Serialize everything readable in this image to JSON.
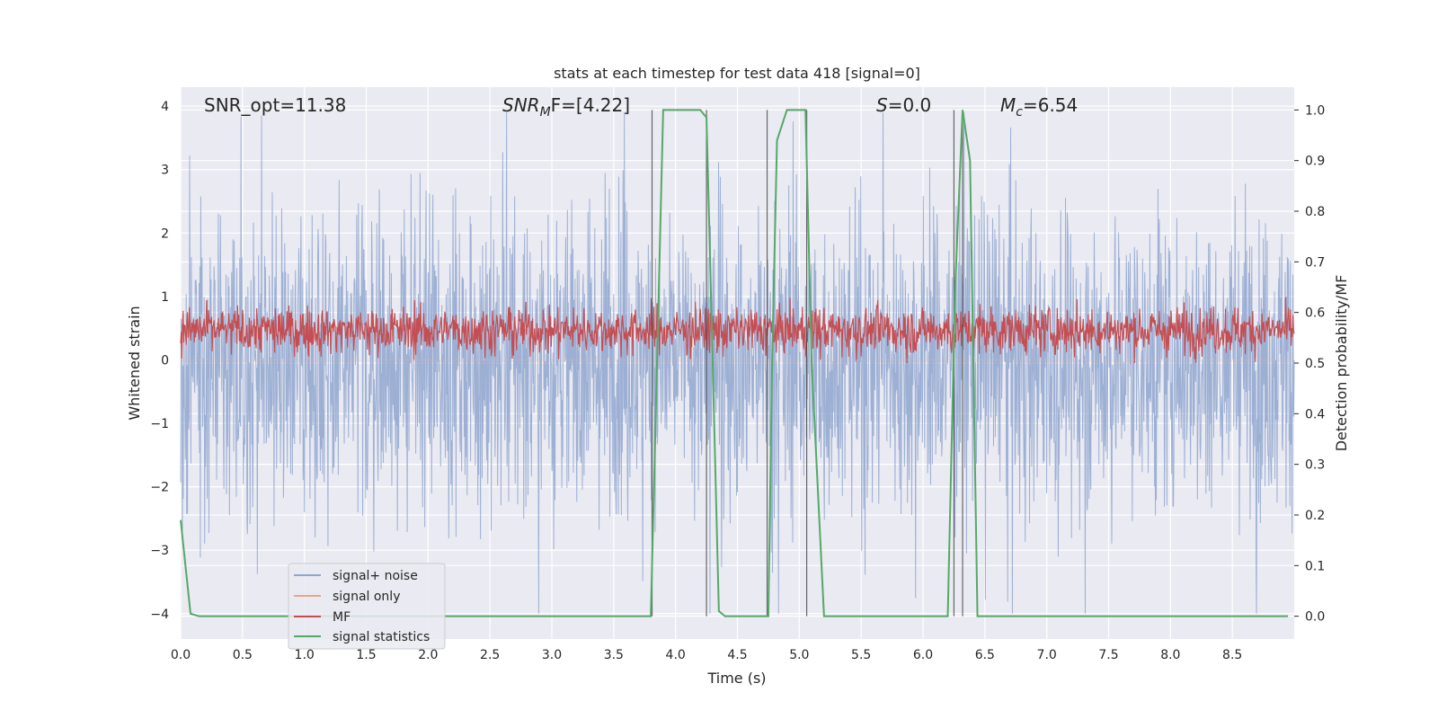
{
  "chart_data": {
    "type": "line",
    "title": "stats at each timestep for test data 418 [signal=0]",
    "xlabel": "Time (s)",
    "ylabel": "Whitened strain",
    "y2label": "Detection probability/MF",
    "xlim": [
      0,
      9.0
    ],
    "ylim": [
      -4.4,
      4.3
    ],
    "y2lim": [
      -0.045,
      1.045
    ],
    "x_ticks": [
      "0.0",
      "0.5",
      "1.0",
      "1.5",
      "2.0",
      "2.5",
      "3.0",
      "3.5",
      "4.0",
      "4.5",
      "5.0",
      "5.5",
      "6.0",
      "6.5",
      "7.0",
      "7.5",
      "8.0",
      "8.5"
    ],
    "y_ticks": [
      "4",
      "3",
      "2",
      "1",
      "0",
      "−1",
      "−2",
      "−3",
      "−4"
    ],
    "y2_ticks": [
      "1.0",
      "0.9",
      "0.8",
      "0.7",
      "0.6",
      "0.5",
      "0.4",
      "0.3",
      "0.2",
      "0.1",
      "0.0"
    ],
    "grid": true,
    "legend_position": "lower-left",
    "annotations": {
      "snr_opt": "SNR_opt=11.38",
      "snr_mf_sym": "SNR",
      "snr_mf_sub": "M",
      "snr_mf_rest": "F=[4.22]",
      "s_sym": "S",
      "s_rest": "=0.0",
      "mc_sym": "M",
      "mc_sub": "c",
      "mc_rest": "=6.54"
    },
    "series": [
      {
        "name": "signal+ noise",
        "color": "#8fa6cf",
        "axis": "left",
        "kind": "noise",
        "amplitude_range": [
          -4.0,
          3.9
        ]
      },
      {
        "name": "signal only",
        "color": "#e8a58a",
        "axis": "left",
        "kind": "flat",
        "value": 0
      },
      {
        "name": "MF",
        "color": "#c44e52",
        "axis": "right",
        "kind": "noise",
        "amplitude_range": [
          0.5,
          0.63
        ]
      },
      {
        "name": "signal statistics",
        "color": "#55a868",
        "axis": "right",
        "kind": "line",
        "x": [
          0.0,
          0.08,
          0.15,
          3.8,
          3.85,
          3.9,
          4.2,
          4.25,
          4.3,
          4.35,
          4.4,
          4.75,
          4.78,
          4.82,
          4.9,
          5.05,
          5.1,
          5.2,
          6.2,
          6.26,
          6.32,
          6.38,
          6.44,
          8.95
        ],
        "y": [
          0.19,
          0.005,
          0.0,
          0.0,
          0.5,
          1.0,
          1.0,
          0.985,
          0.5,
          0.01,
          0.0,
          0.0,
          0.5,
          0.94,
          1.0,
          1.0,
          0.5,
          0.0,
          0.0,
          0.65,
          1.0,
          0.9,
          0.0,
          0.0
        ]
      }
    ],
    "vlines": [
      3.81,
      4.25,
      4.74,
      5.06,
      6.25,
      6.32
    ]
  }
}
